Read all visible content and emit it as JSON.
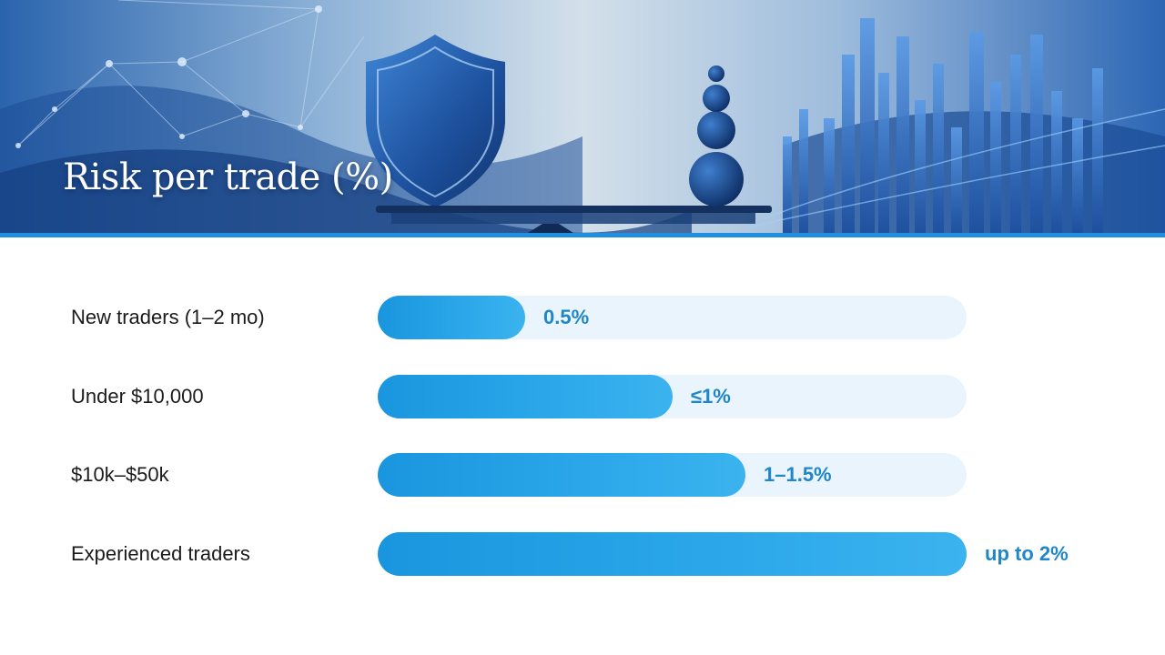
{
  "slide": {
    "title": "Risk per trade (%)"
  },
  "colors": {
    "accent": "#1f8fe0",
    "bar_fill": "#2aa6e9",
    "bar_track": "#e9f4fc",
    "value_text": "#1f86c9",
    "label_text": "#1b1b1b"
  },
  "chart_data": {
    "type": "bar",
    "orientation": "horizontal",
    "title": "Risk per trade (%)",
    "categories": [
      "New traders (1–2 mo)",
      "Under $10,000",
      "$10k–$50k",
      "Experienced traders"
    ],
    "values": [
      0.5,
      1,
      1.25,
      2
    ],
    "value_labels": [
      "0.5%",
      "≤1%",
      "1–1.5%",
      "up to 2%"
    ],
    "xlim": [
      0,
      2
    ],
    "grid": false,
    "legend": "none"
  }
}
